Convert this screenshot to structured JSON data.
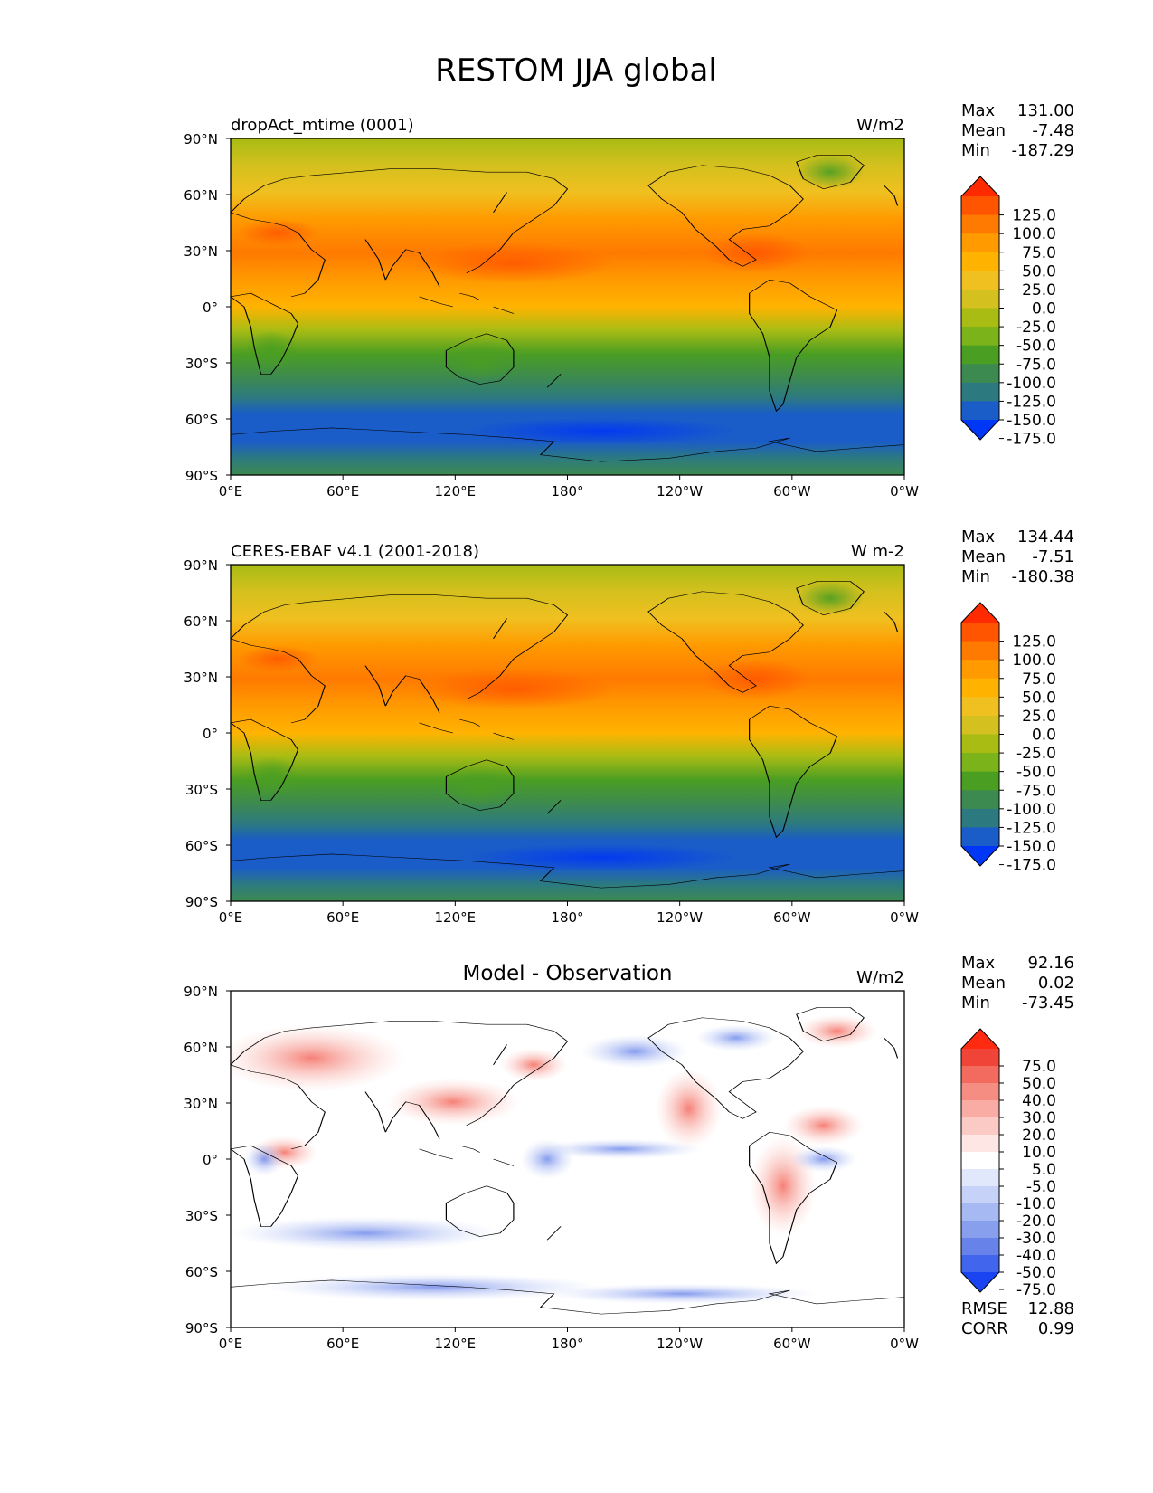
{
  "title": "RESTOM JJA global",
  "lat_labels": [
    "90°N",
    "60°N",
    "30°N",
    "0°",
    "30°S",
    "60°S",
    "90°S"
  ],
  "lon_labels": [
    "0°E",
    "60°E",
    "120°E",
    "180°",
    "120°W",
    "60°W",
    "0°W"
  ],
  "panels": [
    {
      "left_title": "dropAct_mtime (0001)",
      "center_title": "",
      "units": "W/m2",
      "stats": [
        {
          "label": "Max",
          "value": "131.00"
        },
        {
          "label": "Mean",
          "value": "-7.48"
        },
        {
          "label": "Min",
          "value": "-187.29"
        }
      ],
      "colorbar": {
        "ticks": [
          "125.0",
          "100.0",
          "75.0",
          "50.0",
          "25.0",
          "0.0",
          "-25.0",
          "-50.0",
          "-75.0",
          "-100.0",
          "-125.0",
          "-150.0",
          "-175.0"
        ],
        "colors": [
          "#ff2a00",
          "#ff5500",
          "#ff7a00",
          "#ff9a00",
          "#ffb300",
          "#f0c020",
          "#d4c01e",
          "#a8bc14",
          "#7ab41a",
          "#4a9e22",
          "#3d8a50",
          "#2c7a80",
          "#1a5cc8",
          "#0036f5"
        ]
      },
      "extra": []
    },
    {
      "left_title": "CERES-EBAF v4.1 (2001-2018)",
      "center_title": "",
      "units": "W m-2",
      "stats": [
        {
          "label": "Max",
          "value": "134.44"
        },
        {
          "label": "Mean",
          "value": "-7.51"
        },
        {
          "label": "Min",
          "value": "-180.38"
        }
      ],
      "colorbar": {
        "ticks": [
          "125.0",
          "100.0",
          "75.0",
          "50.0",
          "25.0",
          "0.0",
          "-25.0",
          "-50.0",
          "-75.0",
          "-100.0",
          "-125.0",
          "-150.0",
          "-175.0"
        ],
        "colors": [
          "#ff2a00",
          "#ff5500",
          "#ff7a00",
          "#ff9a00",
          "#ffb300",
          "#f0c020",
          "#d4c01e",
          "#a8bc14",
          "#7ab41a",
          "#4a9e22",
          "#3d8a50",
          "#2c7a80",
          "#1a5cc8",
          "#0036f5"
        ]
      },
      "extra": []
    },
    {
      "left_title": "",
      "center_title": "Model - Observation",
      "units": "W/m2",
      "stats": [
        {
          "label": "Max",
          "value": "92.16"
        },
        {
          "label": "Mean",
          "value": "0.02"
        },
        {
          "label": "Min",
          "value": "-73.45"
        }
      ],
      "colorbar": {
        "ticks": [
          "75.0",
          "50.0",
          "40.0",
          "30.0",
          "20.0",
          "10.0",
          "5.0",
          "-5.0",
          "-10.0",
          "-20.0",
          "-30.0",
          "-40.0",
          "-50.0",
          "-75.0"
        ],
        "colors": [
          "#ff2a10",
          "#f04438",
          "#f36a5e",
          "#f58d82",
          "#f8aca3",
          "#fbcac4",
          "#fde6e3",
          "#ffffff",
          "#e2e8fb",
          "#c6d2f7",
          "#a7b9f2",
          "#889fee",
          "#6783ea",
          "#4165ed",
          "#1a44f2"
        ]
      },
      "extra": [
        {
          "label": "RMSE",
          "value": "12.88"
        },
        {
          "label": "CORR",
          "value": "0.99"
        }
      ]
    }
  ]
}
